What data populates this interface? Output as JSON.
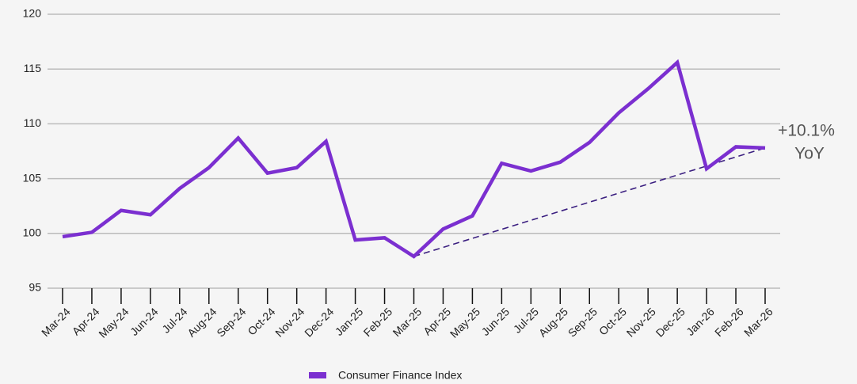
{
  "chart_data": {
    "type": "line",
    "categories": [
      "Mar-24",
      "Apr-24",
      "May-24",
      "Jun-24",
      "Jul-24",
      "Aug-24",
      "Sep-24",
      "Oct-24",
      "Nov-24",
      "Dec-24",
      "Jan-25",
      "Feb-25",
      "Mar-25",
      "Apr-25",
      "May-25",
      "Jun-25",
      "Jul-25",
      "Aug-25",
      "Sep-25",
      "Oct-25",
      "Nov-25",
      "Dec-25",
      "Jan-26",
      "Feb-26",
      "Mar-26"
    ],
    "series": [
      {
        "name": "Consumer Finance Index",
        "color": "#7b2fd0",
        "values": [
          99.7,
          100.1,
          102.1,
          101.7,
          104.1,
          106.0,
          108.7,
          105.5,
          106.0,
          108.4,
          99.4,
          99.6,
          97.9,
          100.4,
          101.6,
          106.4,
          105.7,
          106.5,
          108.3,
          111.0,
          113.2,
          115.6,
          105.9,
          107.9,
          107.8
        ]
      }
    ],
    "ylim": [
      95,
      120
    ],
    "yticks": [
      95,
      100,
      105,
      110,
      115,
      120
    ],
    "grid": true,
    "trendline": {
      "from": "Mar-25",
      "to": "Mar-26",
      "color": "#3b1f80"
    },
    "annotation": [
      "+10.1%",
      "YoY"
    ],
    "legend": "bottom"
  }
}
